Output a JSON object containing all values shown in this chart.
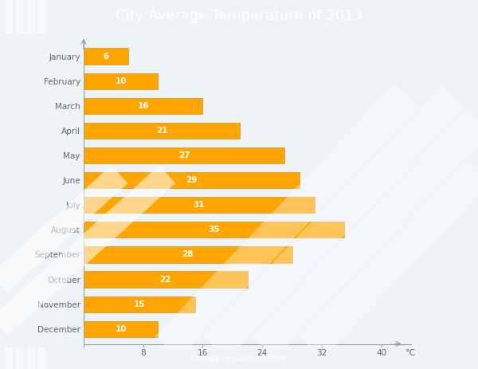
{
  "title": "City Average Temperature of 2013",
  "footer": "Company name/Author",
  "months": [
    "January",
    "February",
    "March",
    "April",
    "May",
    "June",
    "July",
    "August",
    "September",
    "October",
    "November",
    "December"
  ],
  "values": [
    6,
    10,
    16,
    21,
    27,
    29,
    31,
    35,
    28,
    22,
    15,
    10
  ],
  "bar_color": "#FFA500",
  "bar_edge_color": "#CC8800",
  "bar_height": 0.65,
  "xlim": [
    0,
    44
  ],
  "xticks": [
    0,
    8,
    16,
    24,
    32,
    40
  ],
  "xlabel": "℃",
  "title_bg_color": "#6BAEC6",
  "title_stripe_color": "#FFFFFF",
  "title_text_color": "#FFFFFF",
  "footer_bg_color": "#87C0D0",
  "footer_text_color": "#FFFFFF",
  "bg_color": "#EEF3F7",
  "chart_bg_color": "#EEF3F7",
  "axis_color": "#999999",
  "tick_color": "#999999",
  "label_color": "#666666",
  "label_fontsize": 7.5,
  "value_fontsize": 7.5,
  "title_fontsize": 13
}
